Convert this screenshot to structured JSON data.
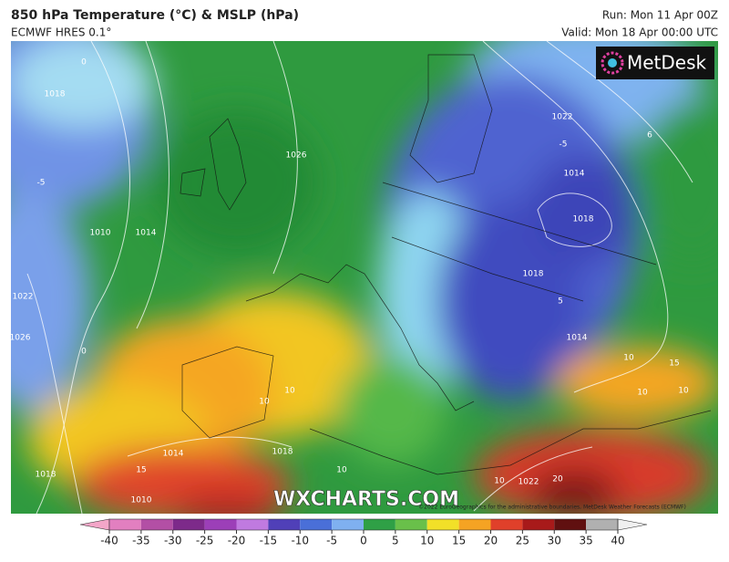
{
  "header": {
    "title": "850 hPa Temperature (°C) & MSLP (hPa)",
    "subtitle": "ECMWF HRES 0.1°",
    "run": "Run: Mon 11 Apr 00Z",
    "valid": "Valid: Mon 18 Apr 00:00 UTC"
  },
  "logo": "MetDesk",
  "watermark": "WXCHARTS.COM",
  "copyright": "©2022 EuroGeographics for the administrative boundaries, MetDesk Weather Forecasts (ECMWF)",
  "map_labels": [
    "0",
    "1018",
    "1026",
    "1014",
    "1010",
    "-5",
    "1022",
    "1026",
    "0",
    "10",
    "10",
    "1014",
    "15",
    "1018",
    "1010",
    "1018",
    "10",
    "1022",
    "-5",
    "1014",
    "1018",
    "1018",
    "5",
    "1014",
    "10",
    "15",
    "10",
    "10",
    "10",
    "1022",
    "20",
    "6"
  ],
  "colorbar": {
    "ticks": [
      -40,
      -35,
      -30,
      -25,
      -20,
      -15,
      -10,
      -5,
      0,
      5,
      10,
      15,
      20,
      25,
      30,
      35,
      40
    ],
    "colors": [
      "#f3a6c8",
      "#e27fc0",
      "#b34fa5",
      "#7d2a8a",
      "#9c3fb8",
      "#c07ae0",
      "#5040b8",
      "#4a6fd8",
      "#7fb0f0",
      "#2fa046",
      "#69c04a",
      "#f2e028",
      "#f5a323",
      "#e0402a",
      "#a81a1a",
      "#601010",
      "#b0b0b0",
      "#f0f0f0"
    ]
  }
}
